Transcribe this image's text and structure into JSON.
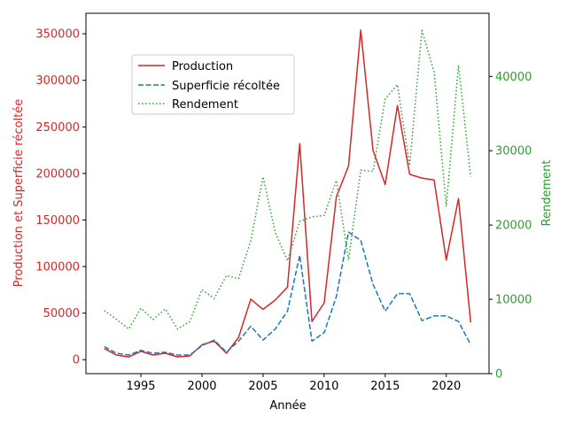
{
  "chart_data": {
    "type": "line",
    "xlabel": "Année",
    "ylabel_left": "Production et Superficie récoltée",
    "ylabel_right": "Rendement",
    "x_ticks": [
      1995,
      2000,
      2005,
      2010,
      2015,
      2020
    ],
    "y_left_ticks": [
      0,
      50000,
      100000,
      150000,
      200000,
      250000,
      300000,
      350000
    ],
    "y_right_ticks": [
      0,
      10000,
      20000,
      30000,
      40000
    ],
    "xlim": [
      1990.5,
      2023.5
    ],
    "ylim_left": [
      -15000,
      372000
    ],
    "ylim_right": [
      0,
      48500
    ],
    "legend_position": "upper-left",
    "grid": false,
    "colors": {
      "left_axis": "#d62728",
      "right_axis": "#2ca02c"
    },
    "x": [
      1992,
      1993,
      1994,
      1995,
      1996,
      1997,
      1998,
      1999,
      2000,
      2001,
      2002,
      2003,
      2004,
      2005,
      2006,
      2007,
      2008,
      2009,
      2010,
      2011,
      2012,
      2013,
      2014,
      2015,
      2016,
      2017,
      2018,
      2019,
      2020,
      2021,
      2022
    ],
    "series": [
      {
        "name": "Production",
        "axis": "left",
        "color": "#d62728",
        "style": "solid",
        "values": [
          12000,
          5000,
          3000,
          9000,
          5000,
          7000,
          3000,
          4000,
          16000,
          20000,
          7000,
          24000,
          65000,
          54000,
          64000,
          78000,
          232000,
          41000,
          61000,
          175000,
          208000,
          354000,
          225000,
          188000,
          273000,
          199000,
          195000,
          193000,
          107000,
          173000,
          40000
        ]
      },
      {
        "name": "Superficie récoltée",
        "axis": "left",
        "color": "#1f77b4",
        "style": "dashed",
        "values": [
          14000,
          7000,
          5000,
          10000,
          7000,
          8000,
          5000,
          5000,
          15000,
          21000,
          8000,
          20000,
          36000,
          21000,
          33000,
          52000,
          112000,
          20000,
          29000,
          68000,
          137000,
          128000,
          81000,
          52000,
          71000,
          71000,
          42000,
          47000,
          47000,
          41000,
          16000
        ]
      },
      {
        "name": "Rendement",
        "axis": "right",
        "color": "#2ca02c",
        "style": "dotted",
        "values": [
          8500,
          7300,
          6000,
          8800,
          7300,
          8700,
          6000,
          7000,
          11300,
          10100,
          13200,
          12800,
          17900,
          26500,
          19000,
          15200,
          20500,
          21100,
          21300,
          26000,
          15300,
          27400,
          27200,
          37000,
          38900,
          28000,
          46200,
          40600,
          22500,
          41500,
          26500
        ]
      }
    ]
  }
}
